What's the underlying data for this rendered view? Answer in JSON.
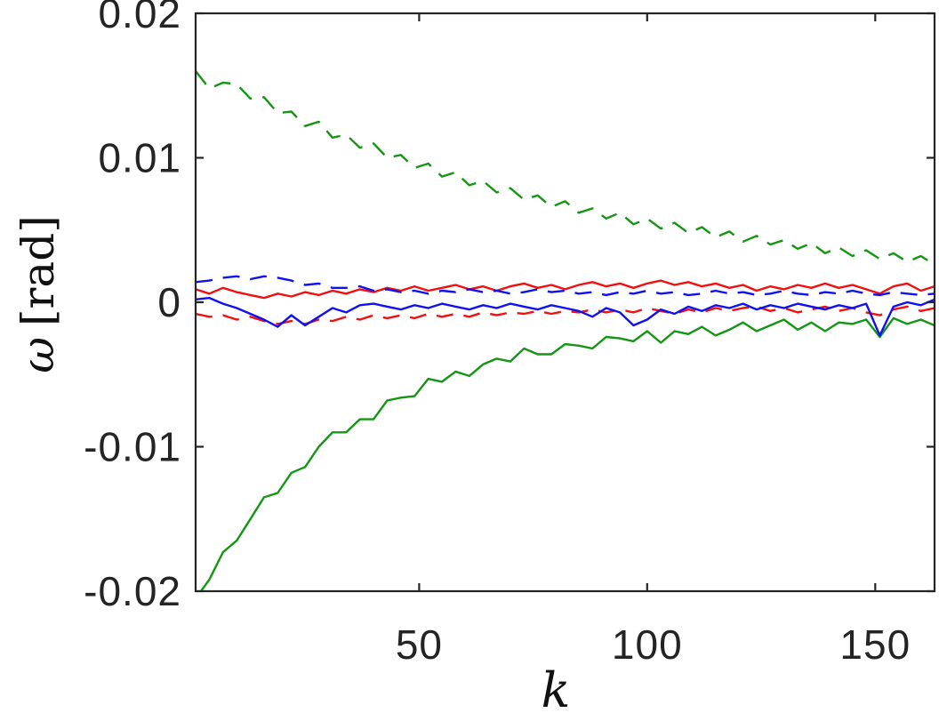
{
  "figure": {
    "background": "#ffffff"
  },
  "colors": {
    "axis": "#242424",
    "tick_text": "#242424",
    "label_text": "#111111",
    "green": "#149614",
    "red": "#f01010",
    "blue": "#1010f0"
  },
  "chart_data": {
    "type": "line",
    "title": "",
    "xlabel": "k",
    "ylabel": "ω [rad]",
    "ylabel_symbol": "ω",
    "ylabel_unit": "[rad]",
    "xlim": [
      1,
      163
    ],
    "ylim": [
      -0.02,
      0.02
    ],
    "xticks": [
      50,
      100,
      150
    ],
    "xtick_labels": [
      "50",
      "100",
      "150"
    ],
    "yticks": [
      0.02,
      0.01,
      0,
      -0.01,
      -0.02
    ],
    "ytick_labels": [
      "0.02",
      "0.01",
      "0",
      "-0.01",
      "-0.02"
    ],
    "grid": false,
    "legend": "none",
    "box": true,
    "tick_direction": "in",
    "x": [
      1,
      4,
      7,
      10,
      13,
      16,
      19,
      22,
      25,
      28,
      31,
      34,
      37,
      40,
      43,
      46,
      49,
      52,
      55,
      58,
      61,
      64,
      67,
      70,
      73,
      76,
      79,
      82,
      85,
      88,
      91,
      94,
      97,
      100,
      103,
      106,
      109,
      112,
      115,
      118,
      121,
      124,
      127,
      130,
      133,
      136,
      139,
      142,
      145,
      148,
      151,
      154,
      157,
      160,
      163
    ],
    "series": [
      {
        "name": "green-dashed-upper-bound",
        "color": "#149614",
        "style": "dashed",
        "values": [
          0.016,
          0.0148,
          0.0152,
          0.0151,
          0.0141,
          0.0142,
          0.0131,
          0.0132,
          0.0122,
          0.0125,
          0.0114,
          0.0116,
          0.0107,
          0.011,
          0.01,
          0.0102,
          0.0093,
          0.0096,
          0.0087,
          0.009,
          0.0081,
          0.0084,
          0.0076,
          0.0079,
          0.0071,
          0.0074,
          0.0066,
          0.007,
          0.0062,
          0.0065,
          0.0058,
          0.0062,
          0.0054,
          0.0058,
          0.0051,
          0.0055,
          0.0048,
          0.0052,
          0.0045,
          0.0049,
          0.0042,
          0.0046,
          0.004,
          0.0043,
          0.0037,
          0.0041,
          0.0034,
          0.0038,
          0.0032,
          0.0036,
          0.003,
          0.0034,
          0.0028,
          0.0032,
          0.0026
        ]
      },
      {
        "name": "green-solid-lower-bound",
        "color": "#149614",
        "style": "solid",
        "values": [
          -0.0205,
          -0.0192,
          -0.0173,
          -0.0165,
          -0.015,
          -0.0135,
          -0.0132,
          -0.0118,
          -0.0114,
          -0.01,
          -0.009,
          -0.009,
          -0.0081,
          -0.0081,
          -0.0068,
          -0.0066,
          -0.0065,
          -0.0053,
          -0.0055,
          -0.0048,
          -0.0051,
          -0.0043,
          -0.0039,
          -0.0041,
          -0.0032,
          -0.0036,
          -0.0036,
          -0.0029,
          -0.003,
          -0.0032,
          -0.0024,
          -0.0025,
          -0.0027,
          -0.002,
          -0.0028,
          -0.002,
          -0.0022,
          -0.0017,
          -0.0023,
          -0.0019,
          -0.0014,
          -0.002,
          -0.0016,
          -0.0012,
          -0.0019,
          -0.0014,
          -0.002,
          -0.0014,
          -0.0015,
          -0.0012,
          -0.0024,
          -0.0011,
          -0.0015,
          -0.0012,
          -0.0016
        ]
      },
      {
        "name": "red-dashed",
        "color": "#f01010",
        "style": "dashed",
        "values": [
          -0.0008,
          -0.001,
          -0.0009,
          -0.0012,
          -0.001,
          -0.0013,
          -0.0015,
          -0.0013,
          -0.0015,
          -0.0012,
          -0.0013,
          -0.001,
          -0.0012,
          -0.0009,
          -0.0011,
          -0.0009,
          -0.0011,
          -0.0008,
          -0.001,
          -0.0008,
          -0.001,
          -0.0007,
          -0.0009,
          -0.0007,
          -0.0008,
          -0.0006,
          -0.0008,
          -0.0006,
          -0.0007,
          -0.0005,
          -0.0007,
          -0.0005,
          -0.0007,
          -0.0004,
          -0.0006,
          -0.0008,
          -0.0005,
          -0.0007,
          -0.0004,
          -0.0006,
          -0.0004,
          -0.0003,
          -0.0006,
          -0.0004,
          -0.0007,
          -0.0005,
          -0.0003,
          -0.0006,
          -0.0004,
          -0.0007,
          -0.0009,
          -0.0005,
          -0.0003,
          -0.0006,
          -0.0004
        ]
      },
      {
        "name": "red-solid",
        "color": "#f01010",
        "style": "solid",
        "values": [
          0.0009,
          0.0006,
          0.001,
          0.0007,
          0.0005,
          0.0003,
          0.0006,
          0.0004,
          0.0007,
          0.0005,
          0.0008,
          0.0006,
          0.0009,
          0.0007,
          0.001,
          0.0008,
          0.0011,
          0.0008,
          0.001,
          0.0012,
          0.0009,
          0.0011,
          0.0008,
          0.0011,
          0.0013,
          0.001,
          0.0012,
          0.0009,
          0.0012,
          0.0014,
          0.0011,
          0.0013,
          0.001,
          0.0013,
          0.0015,
          0.0012,
          0.0014,
          0.0011,
          0.0013,
          0.001,
          0.0012,
          0.0008,
          0.0011,
          0.0009,
          0.0012,
          0.001,
          0.0013,
          0.001,
          0.0012,
          0.0009,
          0.0006,
          0.0011,
          0.0013,
          0.0008,
          0.0011
        ]
      },
      {
        "name": "blue-dashed",
        "color": "#1010f0",
        "style": "dashed",
        "values": [
          0.0014,
          0.0015,
          0.0017,
          0.0018,
          0.0016,
          0.0018,
          0.0017,
          0.0015,
          0.0012,
          0.0013,
          0.001,
          0.001,
          0.0011,
          0.0008,
          0.0009,
          0.0007,
          0.0008,
          0.0006,
          0.0008,
          0.0007,
          0.0009,
          0.0007,
          0.0008,
          0.0006,
          0.0007,
          0.0009,
          0.0007,
          0.0008,
          0.0006,
          0.0007,
          0.0005,
          0.0007,
          0.0006,
          0.0008,
          0.0006,
          0.0007,
          0.0005,
          0.0006,
          0.0008,
          0.0006,
          0.0007,
          0.0005,
          0.0006,
          0.0008,
          0.0006,
          0.0005,
          0.0007,
          0.0006,
          0.0008,
          0.0006,
          0.0005,
          0.0007,
          0.0006,
          0.0005,
          0.0006
        ]
      },
      {
        "name": "blue-solid",
        "color": "#1010f0",
        "style": "solid",
        "values": [
          0.0002,
          0.0003,
          -0.0001,
          -0.0004,
          -0.0008,
          -0.0012,
          -0.0017,
          -0.0009,
          -0.0016,
          -0.001,
          -0.0004,
          -0.0007,
          -0.0002,
          -0.0001,
          -0.0003,
          -0.0005,
          -0.0002,
          -0.0004,
          -0.0001,
          -0.0003,
          -0.0005,
          -0.0002,
          -0.0004,
          -0.0001,
          -0.0003,
          -0.0005,
          -0.0002,
          -0.0004,
          -0.0006,
          -0.001,
          -0.0004,
          -0.0007,
          -0.0016,
          -0.0012,
          -0.0005,
          -0.0008,
          -0.0003,
          -0.0006,
          -0.0002,
          -0.0004,
          -0.0001,
          -0.0005,
          -0.0002,
          -0.0004,
          -0.0001,
          -0.0003,
          -0.0005,
          -0.0002,
          -0.0004,
          -0.0001,
          -0.0023,
          -0.0003,
          0.0,
          -0.0002,
          0.0002
        ]
      }
    ]
  }
}
